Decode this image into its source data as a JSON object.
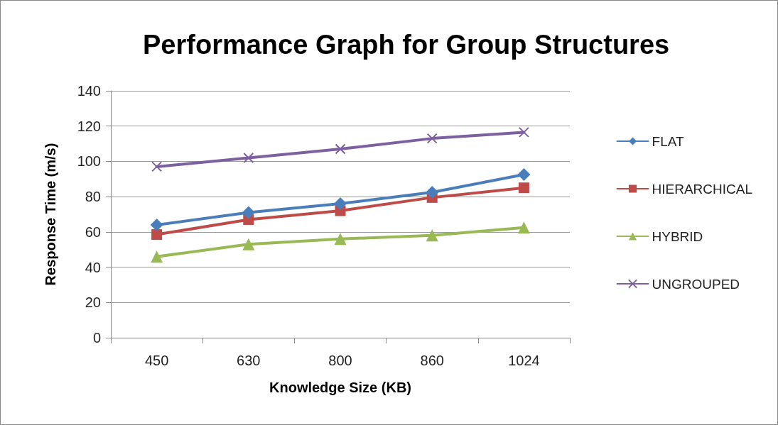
{
  "chart_data": {
    "type": "line",
    "title": "Performance Graph for Group Structures",
    "xlabel": "Knowledge Size (KB)",
    "ylabel": "Response Time (m/s)",
    "categories": [
      "450",
      "630",
      "800",
      "860",
      "1024"
    ],
    "series": [
      {
        "name": "FLAT",
        "color": "#4a7ebb",
        "marker": "diamond",
        "values": [
          64,
          71,
          76,
          82.5,
          92.5
        ]
      },
      {
        "name": "HIERARCHICAL",
        "color": "#be4b48",
        "marker": "square",
        "values": [
          58.5,
          67,
          72,
          79.5,
          85
        ]
      },
      {
        "name": "HYBRID",
        "color": "#98b954",
        "marker": "triangle",
        "values": [
          46,
          53,
          56,
          58,
          62.5
        ]
      },
      {
        "name": "UNGROUPED",
        "color": "#7d60a0",
        "marker": "cross",
        "values": [
          97,
          102,
          107,
          113,
          116.5
        ]
      }
    ],
    "ylim": [
      0,
      140
    ],
    "yticks": [
      0,
      20,
      40,
      60,
      80,
      100,
      120,
      140
    ],
    "grid": "y",
    "legend": "right",
    "line_style": "solid"
  }
}
